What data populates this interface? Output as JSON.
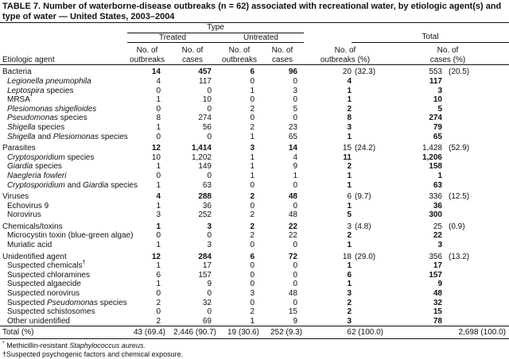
{
  "title": "TABLE 7. Number of waterborne-disease outbreaks (n = 62) associated with recreational water, by etiologic agent(s) and type of water — United States, 2003–2004",
  "header": {
    "type": "Type",
    "treated": "Treated",
    "untreated": "Untreated",
    "total": "Total",
    "etiologic_agent": "Etiologic  agent",
    "no_of": "No. of",
    "outbreaks": "outbreaks",
    "cases": "cases",
    "outbreaks_pct": "outbreaks  (%)",
    "cases_pct": "cases  (%)"
  },
  "rows": [
    {
      "group": true,
      "agent": [
        {
          "t": "Bacteria"
        }
      ],
      "v": [
        "14",
        "457",
        "6",
        "96",
        "20",
        "(32.3)",
        "553",
        "(20.5)"
      ]
    },
    {
      "agent": [
        {
          "t": "Legionella pneumophila",
          "i": true
        }
      ],
      "v": [
        "4",
        "117",
        "0",
        "0",
        "4",
        "",
        "117",
        ""
      ]
    },
    {
      "agent": [
        {
          "t": "Leptospira",
          "i": true
        },
        {
          "t": "  species"
        }
      ],
      "v": [
        "0",
        "0",
        "1",
        "3",
        "1",
        "",
        "3",
        ""
      ]
    },
    {
      "agent": [
        {
          "t": "MRSA"
        },
        {
          "t": "*",
          "sup": true
        }
      ],
      "v": [
        "1",
        "10",
        "0",
        "0",
        "1",
        "",
        "10",
        ""
      ]
    },
    {
      "agent": [
        {
          "t": "Plesiomonas shigelloides",
          "i": true
        }
      ],
      "v": [
        "0",
        "0",
        "2",
        "5",
        "2",
        "",
        "5",
        ""
      ]
    },
    {
      "agent": [
        {
          "t": "Pseudomonas",
          "i": true
        },
        {
          "t": "  species"
        }
      ],
      "v": [
        "8",
        "274",
        "0",
        "0",
        "8",
        "",
        "274",
        ""
      ]
    },
    {
      "agent": [
        {
          "t": "Shigella",
          "i": true
        },
        {
          "t": " species"
        }
      ],
      "v": [
        "1",
        "56",
        "2",
        "23",
        "3",
        "",
        "79",
        ""
      ]
    },
    {
      "agent": [
        {
          "t": "Shigella",
          "i": true
        },
        {
          "t": " and "
        },
        {
          "t": "Plesiomonas",
          "i": true
        },
        {
          "t": " species"
        }
      ],
      "v": [
        "0",
        "0",
        "1",
        "65",
        "1",
        "",
        "65",
        ""
      ]
    },
    {
      "group": true,
      "agent": [
        {
          "t": "Parasites"
        }
      ],
      "v": [
        "12",
        "1,414",
        "3",
        "14",
        "15",
        "(24.2)",
        "1,428",
        "(52.9)"
      ]
    },
    {
      "agent": [
        {
          "t": "Cryptosporidium",
          "i": true
        },
        {
          "t": "  species"
        }
      ],
      "v": [
        "10",
        "1,202",
        "1",
        "4",
        "11",
        "",
        "1,206",
        ""
      ]
    },
    {
      "agent": [
        {
          "t": "Giardia",
          "i": true
        },
        {
          "t": " species"
        }
      ],
      "v": [
        "1",
        "149",
        "1",
        "9",
        "2",
        "",
        "158",
        ""
      ]
    },
    {
      "agent": [
        {
          "t": "Naegleria fowleri",
          "i": true
        }
      ],
      "v": [
        "0",
        "0",
        "1",
        "1",
        "1",
        "",
        "1",
        ""
      ]
    },
    {
      "agent": [
        {
          "t": "Cryptosporidium",
          "i": true
        },
        {
          "t": " and "
        },
        {
          "t": "Giardia",
          "i": true
        },
        {
          "t": " species"
        }
      ],
      "v": [
        "1",
        "63",
        "0",
        "0",
        "1",
        "",
        "63",
        ""
      ]
    },
    {
      "group": true,
      "agent": [
        {
          "t": "Viruses"
        }
      ],
      "v": [
        "4",
        "288",
        "2",
        "48",
        "6",
        "(9.7)",
        "336",
        "(12.5)"
      ]
    },
    {
      "agent": [
        {
          "t": "Echovirus 9"
        }
      ],
      "v": [
        "1",
        "36",
        "0",
        "0",
        "1",
        "",
        "36",
        ""
      ]
    },
    {
      "agent": [
        {
          "t": "Norovirus"
        }
      ],
      "v": [
        "3",
        "252",
        "2",
        "48",
        "5",
        "",
        "300",
        ""
      ]
    },
    {
      "group": true,
      "agent": [
        {
          "t": "Chemicals/toxins"
        }
      ],
      "v": [
        "1",
        "3",
        "2",
        "22",
        "3",
        "(4.8)",
        "25",
        "(0.9)"
      ]
    },
    {
      "agent": [
        {
          "t": "Microcystin toxin (blue-green algae)"
        }
      ],
      "v": [
        "0",
        "0",
        "2",
        "22",
        "2",
        "",
        "22",
        ""
      ]
    },
    {
      "agent": [
        {
          "t": "Muriatic acid"
        }
      ],
      "v": [
        "1",
        "3",
        "0",
        "0",
        "1",
        "",
        "3",
        ""
      ]
    },
    {
      "group": true,
      "agent": [
        {
          "t": "Unidentified  agent"
        }
      ],
      "v": [
        "12",
        "284",
        "6",
        "72",
        "18",
        "(29.0)",
        "356",
        "(13.2)"
      ]
    },
    {
      "agent": [
        {
          "t": "Suspected  chemicals"
        },
        {
          "t": "†",
          "sup": true
        }
      ],
      "v": [
        "1",
        "17",
        "0",
        "0",
        "1",
        "",
        "17",
        ""
      ]
    },
    {
      "agent": [
        {
          "t": "Suspected  chloramines"
        }
      ],
      "v": [
        "6",
        "157",
        "0",
        "0",
        "6",
        "",
        "157",
        ""
      ]
    },
    {
      "agent": [
        {
          "t": "Suspected  algaecide"
        }
      ],
      "v": [
        "1",
        "9",
        "0",
        "0",
        "1",
        "",
        "9",
        ""
      ]
    },
    {
      "agent": [
        {
          "t": "Suspected  norovirus"
        }
      ],
      "v": [
        "0",
        "0",
        "3",
        "48",
        "3",
        "",
        "48",
        ""
      ]
    },
    {
      "agent": [
        {
          "t": "Suspected  "
        },
        {
          "t": "Pseudomonas",
          "i": true
        },
        {
          "t": " species"
        }
      ],
      "v": [
        "2",
        "32",
        "0",
        "0",
        "2",
        "",
        "32",
        ""
      ]
    },
    {
      "agent": [
        {
          "t": "Suspected  schistosomes"
        }
      ],
      "v": [
        "0",
        "0",
        "2",
        "15",
        "2",
        "",
        "15",
        ""
      ]
    },
    {
      "agent": [
        {
          "t": "Other unidentified"
        }
      ],
      "v": [
        "2",
        "69",
        "1",
        "9",
        "3",
        "",
        "78",
        ""
      ]
    }
  ],
  "total_row": {
    "label": "Total  (%)",
    "v": [
      "43 (69.4)",
      "2,446 (90.7)",
      "19 (30.6)",
      "252 (9.3)",
      "62 (100.0)",
      "2,698 (100.0)"
    ]
  },
  "footnotes": [
    [
      {
        "t": "*",
        "sup": true
      },
      {
        "t": " Methicillin-resistant "
      },
      {
        "t": "Staphylococcus aureus.",
        "i": true
      }
    ],
    [
      {
        "t": "†"
      },
      {
        "t": "Suspected psychogenic factors and chemical exposure."
      }
    ]
  ]
}
